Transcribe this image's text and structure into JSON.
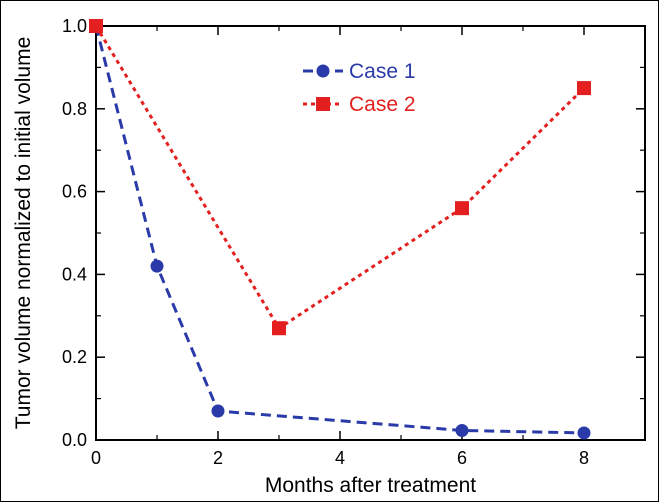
{
  "chart_data": {
    "type": "line",
    "xlabel": "Months after treatment",
    "ylabel": "Tumor volume normalized to initial volume",
    "xlim": [
      0,
      9
    ],
    "ylim": [
      0,
      1.0
    ],
    "x_ticks": [
      "0",
      "2",
      "4",
      "6",
      "8"
    ],
    "y_ticks": [
      "0.0",
      "0.2",
      "0.4",
      "0.6",
      "0.8",
      "1.0"
    ],
    "grid": false,
    "legend_position": "top-center",
    "series": [
      {
        "name": "Case 1",
        "color": "#2a3aa8",
        "marker": "circle",
        "line_style": "dashed",
        "x": [
          0,
          1,
          2,
          6,
          8
        ],
        "y": [
          1.0,
          0.42,
          0.07,
          0.023,
          0.017
        ]
      },
      {
        "name": "Case 2",
        "color": "#e41f1f",
        "marker": "square",
        "line_style": "dotted",
        "x": [
          0,
          3,
          6,
          8
        ],
        "y": [
          1.0,
          0.27,
          0.56,
          0.85
        ]
      }
    ]
  }
}
